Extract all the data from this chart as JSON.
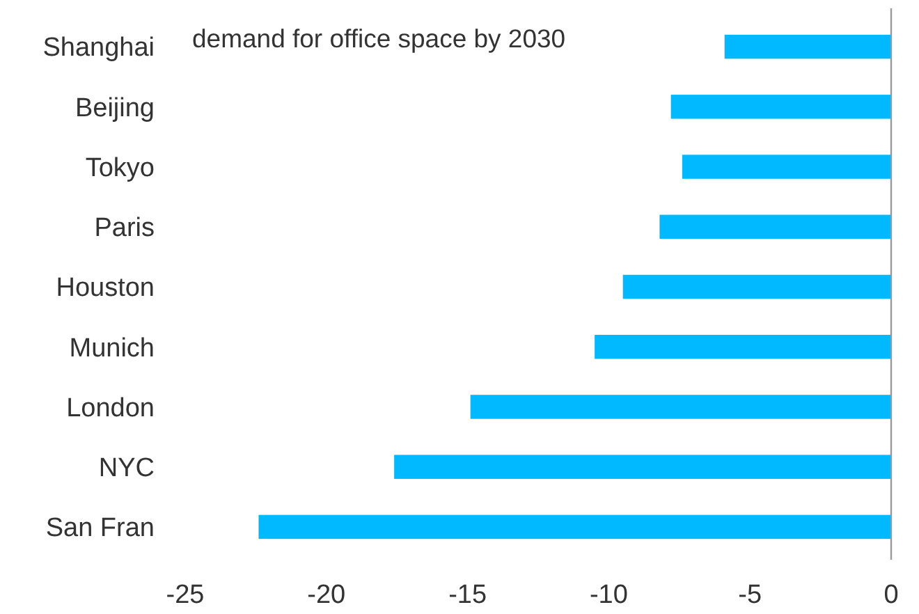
{
  "chart_data": {
    "type": "bar",
    "orientation": "horizontal",
    "title": "demand for office space by 2030",
    "categories": [
      "Shanghai",
      "Beijing",
      "Tokyo",
      "Paris",
      "Houston",
      "Munich",
      "London",
      "NYC",
      "San Fran"
    ],
    "values": [
      -5.9,
      -7.8,
      -7.4,
      -8.2,
      -9.5,
      -10.5,
      -14.9,
      -17.6,
      -22.4
    ],
    "color": "#00b9ff",
    "xlim": [
      -25,
      0
    ],
    "xticks": [
      -25,
      -20,
      -15,
      -10,
      -5,
      0
    ],
    "grid": false
  }
}
